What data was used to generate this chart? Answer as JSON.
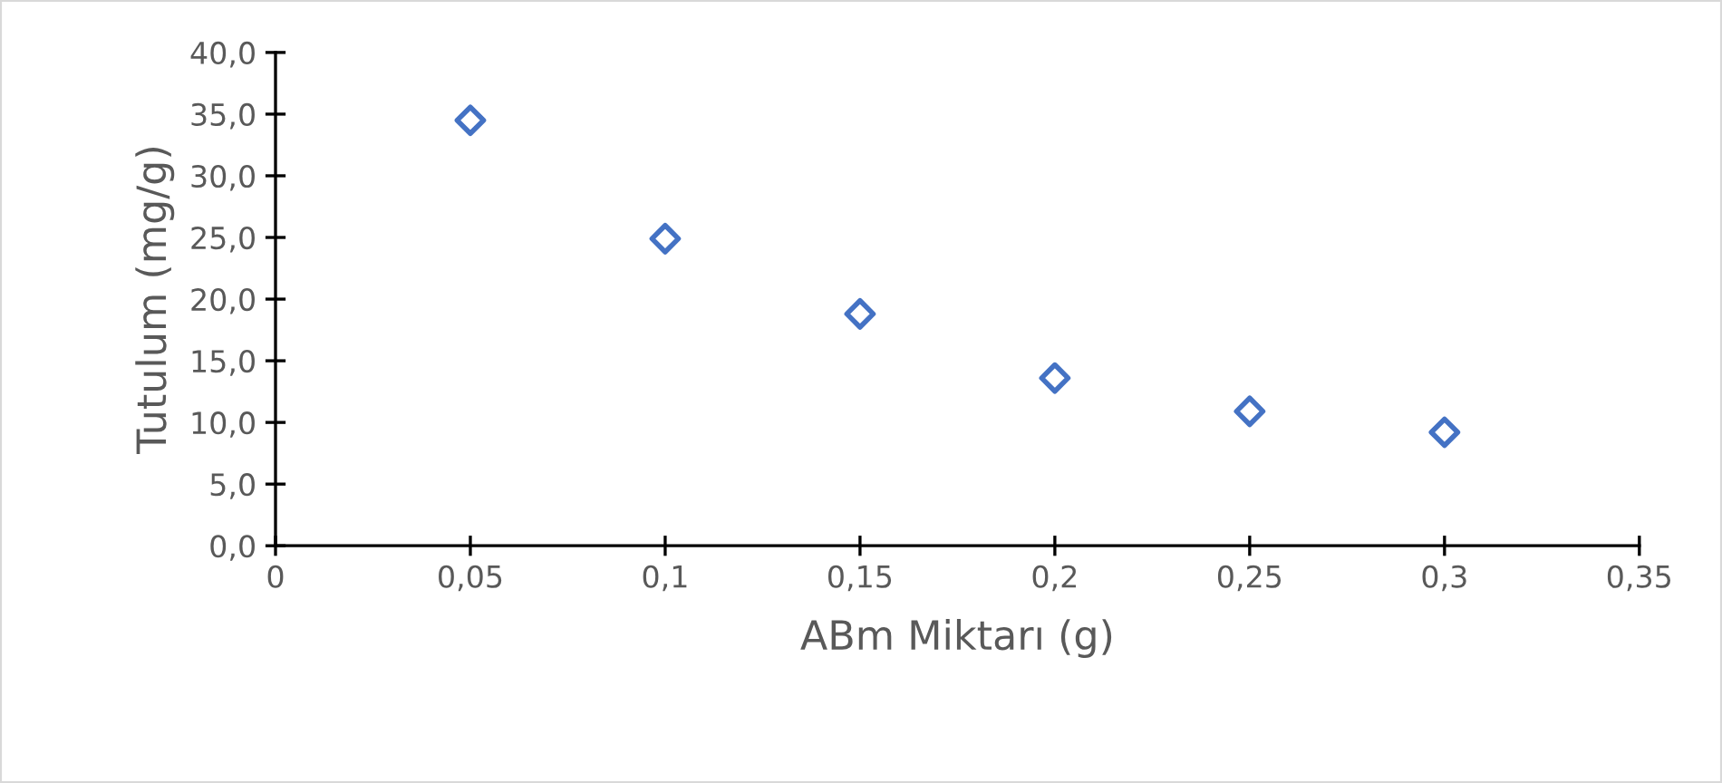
{
  "chart_data": {
    "type": "scatter",
    "xlabel": "ABm Miktarı (g)",
    "ylabel": "Tutulum (mg/g)",
    "x": [
      0.05,
      0.1,
      0.15,
      0.2,
      0.25,
      0.3
    ],
    "series": [
      {
        "color": "#4472c4",
        "values": [
          34.5,
          24.9,
          18.8,
          13.6,
          10.9,
          9.2
        ]
      }
    ],
    "xlim": [
      0,
      0.35
    ],
    "xticks": [
      0,
      {
        "value": 0.05,
        "label": "0,05"
      },
      {
        "value": 0.1,
        "label": "0,1"
      },
      {
        "value": 0.15,
        "label": "0,15"
      },
      {
        "value": 0.2,
        "label": "0,2"
      },
      {
        "value": 0.25,
        "label": "0,25"
      },
      {
        "value": 0.3,
        "label": "0,3"
      },
      {
        "value": 0.35,
        "label": "0,35"
      }
    ],
    "ylim": [
      0,
      40
    ],
    "yticks": [
      {
        "value": 0,
        "label": "0,0"
      },
      {
        "value": 5,
        "label": "5,0"
      },
      {
        "value": 10,
        "label": "10,0"
      },
      {
        "value": 15,
        "label": "15,0"
      },
      {
        "value": 20,
        "label": "20,0"
      },
      {
        "value": 25,
        "label": "25,0"
      },
      {
        "value": 30,
        "label": "30,0"
      },
      {
        "value": 35,
        "label": "35,0"
      },
      {
        "value": 40,
        "label": "40,0"
      }
    ],
    "marker": "diamond",
    "grid": false,
    "legend": false
  }
}
